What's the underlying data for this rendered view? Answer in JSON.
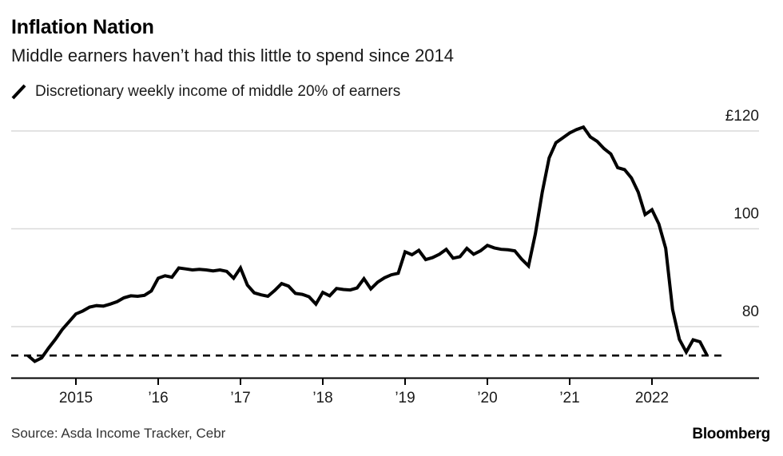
{
  "header": {
    "title": "Inflation Nation",
    "subtitle": "Middle earners haven’t had this little to spend since 2014"
  },
  "legend": {
    "label": "Discretionary weekly income of middle 20% of earners"
  },
  "footer": {
    "source": "Source: Asda Income Tracker, Cebr",
    "brand": "Bloomberg"
  },
  "colors": {
    "line": "#000000",
    "grid": "#d9d9d9",
    "axis": "#000000",
    "text": "#1a1a1a",
    "reference": "#000000",
    "background": "#ffffff"
  },
  "chart_data": {
    "type": "line",
    "title": "Inflation Nation",
    "subtitle": "Middle earners haven’t had this little to spend since 2014",
    "series_name": "Discretionary weekly income of middle 20% of earners",
    "unit": "GBP per week",
    "ylim": [
      70,
      124
    ],
    "x_range": [
      "2014-06",
      "2022-09"
    ],
    "grid": "horizontal",
    "legend_position": "top-left",
    "y_ticks": [
      {
        "value": 120,
        "label": "£120"
      },
      {
        "value": 100,
        "label": "100"
      },
      {
        "value": 80,
        "label": "80"
      }
    ],
    "x_ticks": [
      {
        "value": 2015,
        "label": "2015"
      },
      {
        "value": 2016,
        "label": "’16"
      },
      {
        "value": 2017,
        "label": "’17"
      },
      {
        "value": 2018,
        "label": "’18"
      },
      {
        "value": 2019,
        "label": "’19"
      },
      {
        "value": 2020,
        "label": "’20"
      },
      {
        "value": 2021,
        "label": "’21"
      },
      {
        "value": 2022,
        "label": "2022"
      }
    ],
    "reference_line": {
      "value": 74.1,
      "style": "dashed"
    },
    "points": [
      [
        "2014-06",
        74.1
      ],
      [
        "2014-07",
        72.9
      ],
      [
        "2014-08",
        73.6
      ],
      [
        "2014-09",
        75.6
      ],
      [
        "2014-10",
        77.4
      ],
      [
        "2014-11",
        79.4
      ],
      [
        "2014-12",
        81.0
      ],
      [
        "2015-01",
        82.6
      ],
      [
        "2015-02",
        83.2
      ],
      [
        "2015-03",
        84.0
      ],
      [
        "2015-04",
        84.3
      ],
      [
        "2015-05",
        84.2
      ],
      [
        "2015-06",
        84.6
      ],
      [
        "2015-07",
        85.1
      ],
      [
        "2015-08",
        85.9
      ],
      [
        "2015-09",
        86.3
      ],
      [
        "2015-10",
        86.2
      ],
      [
        "2015-11",
        86.4
      ],
      [
        "2015-12",
        87.3
      ],
      [
        "2016-01",
        89.9
      ],
      [
        "2016-02",
        90.4
      ],
      [
        "2016-03",
        90.1
      ],
      [
        "2016-04",
        92.0
      ],
      [
        "2016-05",
        91.8
      ],
      [
        "2016-06",
        91.6
      ],
      [
        "2016-07",
        91.7
      ],
      [
        "2016-08",
        91.6
      ],
      [
        "2016-09",
        91.4
      ],
      [
        "2016-10",
        91.6
      ],
      [
        "2016-11",
        91.3
      ],
      [
        "2016-12",
        89.9
      ],
      [
        "2017-01",
        92.0
      ],
      [
        "2017-02",
        88.5
      ],
      [
        "2017-03",
        86.9
      ],
      [
        "2017-04",
        86.5
      ],
      [
        "2017-05",
        86.2
      ],
      [
        "2017-06",
        87.4
      ],
      [
        "2017-07",
        88.8
      ],
      [
        "2017-08",
        88.3
      ],
      [
        "2017-09",
        86.8
      ],
      [
        "2017-10",
        86.6
      ],
      [
        "2017-11",
        86.1
      ],
      [
        "2017-12",
        84.6
      ],
      [
        "2018-01",
        87.0
      ],
      [
        "2018-02",
        86.3
      ],
      [
        "2018-03",
        87.8
      ],
      [
        "2018-04",
        87.6
      ],
      [
        "2018-05",
        87.5
      ],
      [
        "2018-06",
        87.9
      ],
      [
        "2018-07",
        89.8
      ],
      [
        "2018-08",
        87.7
      ],
      [
        "2018-09",
        89.1
      ],
      [
        "2018-10",
        90.0
      ],
      [
        "2018-11",
        90.6
      ],
      [
        "2018-12",
        90.9
      ],
      [
        "2019-01",
        95.3
      ],
      [
        "2019-02",
        94.7
      ],
      [
        "2019-03",
        95.6
      ],
      [
        "2019-04",
        93.7
      ],
      [
        "2019-05",
        94.1
      ],
      [
        "2019-06",
        94.8
      ],
      [
        "2019-07",
        95.8
      ],
      [
        "2019-08",
        94.0
      ],
      [
        "2019-09",
        94.3
      ],
      [
        "2019-10",
        96.0
      ],
      [
        "2019-11",
        94.8
      ],
      [
        "2019-12",
        95.5
      ],
      [
        "2020-01",
        96.6
      ],
      [
        "2020-02",
        96.1
      ],
      [
        "2020-03",
        95.8
      ],
      [
        "2020-04",
        95.7
      ],
      [
        "2020-05",
        95.5
      ],
      [
        "2020-06",
        93.8
      ],
      [
        "2020-07",
        92.4
      ],
      [
        "2020-08",
        99.0
      ],
      [
        "2020-09",
        107.5
      ],
      [
        "2020-10",
        114.5
      ],
      [
        "2020-11",
        117.6
      ],
      [
        "2020-12",
        118.6
      ],
      [
        "2021-01",
        119.6
      ],
      [
        "2021-02",
        120.3
      ],
      [
        "2021-03",
        120.8
      ],
      [
        "2021-04",
        118.8
      ],
      [
        "2021-05",
        117.9
      ],
      [
        "2021-06",
        116.4
      ],
      [
        "2021-07",
        115.3
      ],
      [
        "2021-08",
        112.5
      ],
      [
        "2021-09",
        112.1
      ],
      [
        "2021-10",
        110.4
      ],
      [
        "2021-11",
        107.5
      ],
      [
        "2021-12",
        102.9
      ],
      [
        "2022-01",
        103.9
      ],
      [
        "2022-02",
        101.0
      ],
      [
        "2022-03",
        96.0
      ],
      [
        "2022-04",
        83.5
      ],
      [
        "2022-05",
        77.4
      ],
      [
        "2022-06",
        74.8
      ],
      [
        "2022-07",
        77.3
      ],
      [
        "2022-08",
        76.9
      ],
      [
        "2022-09",
        74.2
      ]
    ]
  }
}
